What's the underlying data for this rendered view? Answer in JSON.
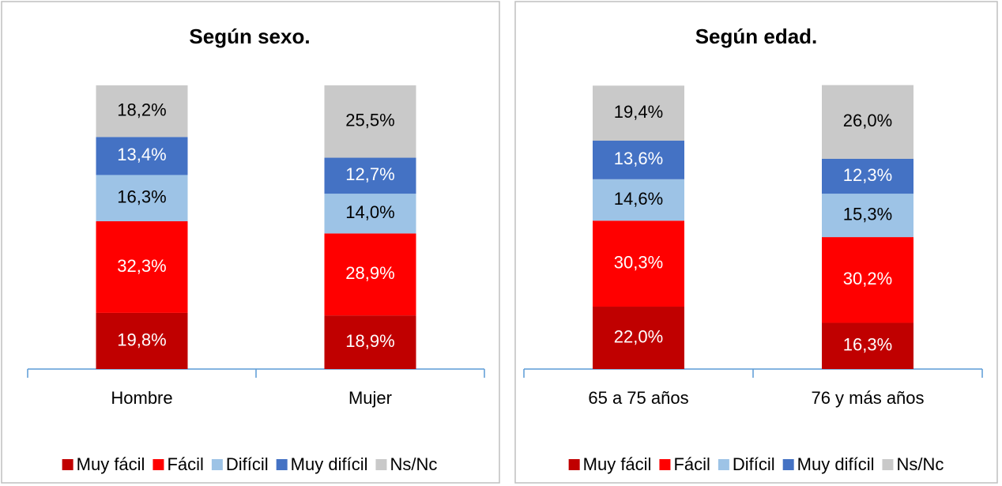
{
  "chart_data": [
    {
      "type": "bar",
      "stacked": true,
      "title": "Según sexo.",
      "categories": [
        "Hombre",
        "Mujer"
      ],
      "ylim": [
        0,
        100
      ],
      "legend": "bottom",
      "series": [
        {
          "name": "Muy fácil",
          "color": "#c00000",
          "values": [
            19.8,
            18.9
          ],
          "value_labels": [
            "19,8%",
            "18,9%"
          ]
        },
        {
          "name": "Fácil",
          "color": "#ff0000",
          "values": [
            32.3,
            28.9
          ],
          "value_labels": [
            "32,3%",
            "28,9%"
          ]
        },
        {
          "name": "Difícil",
          "color": "#9dc3e6",
          "values": [
            16.3,
            14.0
          ],
          "value_labels": [
            "16,3%",
            "14,0%"
          ]
        },
        {
          "name": "Muy difícil",
          "color": "#4472c4",
          "values": [
            13.4,
            12.7
          ],
          "value_labels": [
            "13,4%",
            "12,7%"
          ]
        },
        {
          "name": "Ns/Nc",
          "color": "#c9c9c9",
          "values": [
            18.2,
            25.5
          ],
          "value_labels": [
            "18,2%",
            "25,5%"
          ]
        }
      ]
    },
    {
      "type": "bar",
      "stacked": true,
      "title": "Según edad.",
      "categories": [
        "65 a 75 años",
        "76 y más años"
      ],
      "ylim": [
        0,
        100
      ],
      "legend": "bottom",
      "series": [
        {
          "name": "Muy fácil",
          "color": "#c00000",
          "values": [
            22.0,
            16.3
          ],
          "value_labels": [
            "22,0%",
            "16,3%"
          ]
        },
        {
          "name": "Fácil",
          "color": "#ff0000",
          "values": [
            30.3,
            30.2
          ],
          "value_labels": [
            "30,3%",
            "30,2%"
          ]
        },
        {
          "name": "Difícil",
          "color": "#9dc3e6",
          "values": [
            14.6,
            15.3
          ],
          "value_labels": [
            "14,6%",
            "15,3%"
          ]
        },
        {
          "name": "Muy difícil",
          "color": "#4472c4",
          "values": [
            13.6,
            12.3
          ],
          "value_labels": [
            "13,6%",
            "12,3%"
          ]
        },
        {
          "name": "Ns/Nc",
          "color": "#c9c9c9",
          "values": [
            19.4,
            26.0
          ],
          "value_labels": [
            "19,4%",
            "26,0%"
          ]
        }
      ]
    }
  ]
}
